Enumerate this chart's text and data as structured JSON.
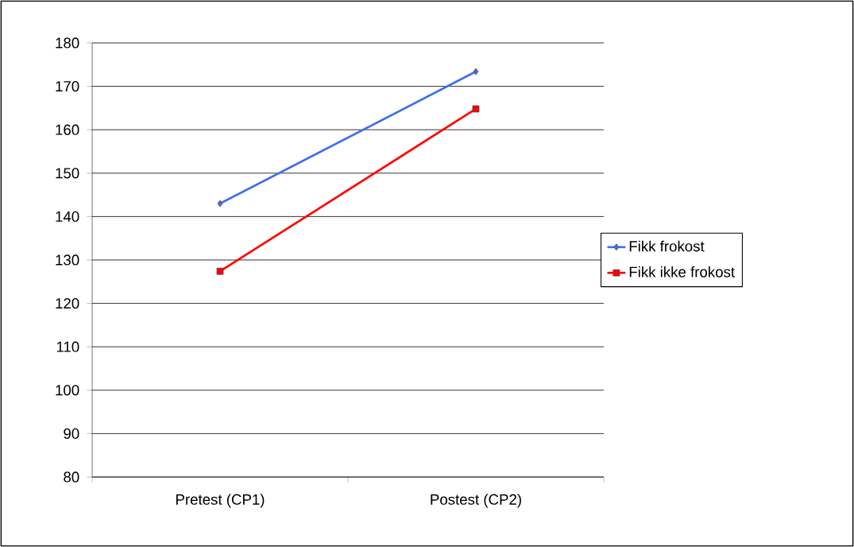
{
  "chart_data": {
    "type": "line",
    "categories": [
      "Pretest (CP1)",
      "Postest (CP2)"
    ],
    "series": [
      {
        "name": "Fikk frokost",
        "color": "#3f6fe8",
        "values": [
          143,
          173.4
        ],
        "marker": "diamond"
      },
      {
        "name": "Fikk ikke frokost",
        "color": "#ff0000",
        "values": [
          127.4,
          164.8
        ],
        "marker": "square"
      }
    ],
    "ylim": [
      80,
      180
    ],
    "yticks": [
      80,
      90,
      100,
      110,
      120,
      130,
      140,
      150,
      160,
      170,
      180
    ],
    "grid": "y",
    "legend": "right",
    "line_style": "solid"
  }
}
